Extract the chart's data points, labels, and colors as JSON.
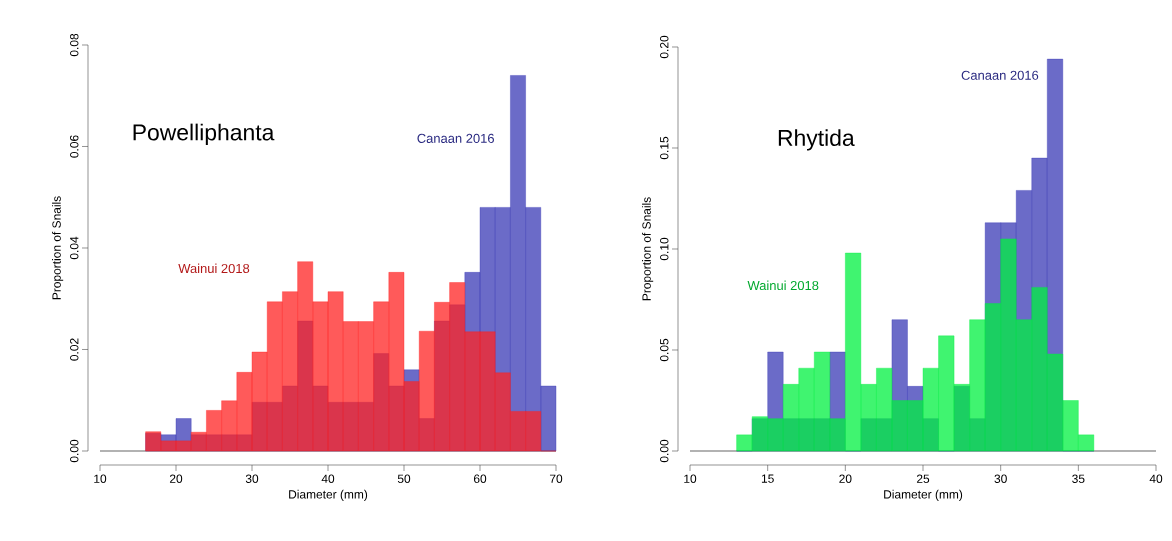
{
  "chart_data": [
    {
      "type": "histogram",
      "title": "Powelliphanta",
      "xlabel": "Diameter (mm)",
      "ylabel": "Proportion of Snails",
      "bins": [
        16,
        18,
        20,
        22,
        24,
        26,
        28,
        30,
        32,
        34,
        36,
        38,
        40,
        42,
        44,
        46,
        48,
        50,
        52,
        54,
        56,
        58,
        60,
        62,
        64,
        66,
        68,
        70
      ],
      "series": [
        {
          "name": "Canaan 2016",
          "color": "#6b6bc8",
          "values": [
            0.0035,
            0.0032,
            0.0064,
            0.0032,
            0.0032,
            0.0032,
            0.0032,
            0.0096,
            0.0096,
            0.0128,
            0.0256,
            0.0128,
            0.0096,
            0.0096,
            0.0096,
            0.0192,
            0.0128,
            0.016,
            0.0064,
            0.0256,
            0.0288,
            0.0352,
            0.048,
            0.048,
            0.074,
            0.048,
            0.0128
          ]
        },
        {
          "name": "Wainui 2018",
          "color": "#ff5a5a",
          "values": [
            0.0038,
            0.002,
            0.002,
            0.0037,
            0.008,
            0.0099,
            0.0155,
            0.0195,
            0.0294,
            0.0314,
            0.0373,
            0.0294,
            0.0314,
            0.0255,
            0.0255,
            0.0294,
            0.0352,
            0.0137,
            0.0236,
            0.0293,
            0.0332,
            0.0235,
            0.0235,
            0.0154,
            0.0078,
            0.0078,
            0
          ]
        }
      ],
      "xlim": [
        10,
        70
      ],
      "xticks": [
        10,
        20,
        30,
        40,
        50,
        60,
        70
      ],
      "ylim": [
        0,
        0.08
      ],
      "yticks": [
        {
          "value": 0,
          "label": "0.00"
        },
        {
          "value": 0.02,
          "label": "0.02"
        },
        {
          "value": 0.04,
          "label": "0.04"
        },
        {
          "value": 0.06,
          "label": "0.06"
        },
        {
          "value": 0.08,
          "label": "0.08"
        }
      ],
      "ref_lines": [
        {
          "axis": "y",
          "value": 0,
          "color": "#999999"
        }
      ]
    },
    {
      "type": "histogram",
      "title": "Rhytida",
      "xlabel": "Diameter (mm)",
      "ylabel": "Proportion of Snails",
      "bins": [
        13,
        14,
        15,
        16,
        17,
        18,
        19,
        20,
        21,
        22,
        23,
        24,
        25,
        26,
        27,
        28,
        29,
        30,
        31,
        32,
        33,
        34,
        35,
        36
      ],
      "series": [
        {
          "name": "Canaan 2016",
          "color": "#6b6bc8",
          "values": [
            0,
            0.016,
            0.049,
            0.016,
            0.016,
            0.016,
            0.049,
            0,
            0.016,
            0.016,
            0.065,
            0.032,
            0.016,
            0,
            0.032,
            0.016,
            0.113,
            0.113,
            0.129,
            0.145,
            0.194,
            0,
            0
          ]
        },
        {
          "name": "Wainui 2018",
          "color": "#40f470",
          "values": [
            0.008,
            0.017,
            0.016,
            0.033,
            0.041,
            0.049,
            0.016,
            0.098,
            0.033,
            0.041,
            0.025,
            0.025,
            0.041,
            0.057,
            0.033,
            0.065,
            0.073,
            0.105,
            0.065,
            0.081,
            0.048,
            0.025,
            0.008
          ]
        }
      ],
      "xlim": [
        10,
        40
      ],
      "xticks": [
        10,
        15,
        20,
        25,
        30,
        35,
        40
      ],
      "ylim": [
        0,
        0.2
      ],
      "yticks": [
        {
          "value": 0,
          "label": "0.00"
        },
        {
          "value": 0.05,
          "label": "0.05"
        },
        {
          "value": 0.1,
          "label": "0.10"
        },
        {
          "value": 0.15,
          "label": "0.15"
        },
        {
          "value": 0.2,
          "label": "0.20"
        }
      ],
      "ref_lines": [
        {
          "axis": "y",
          "value": 0,
          "color": "#999999"
        }
      ]
    }
  ]
}
